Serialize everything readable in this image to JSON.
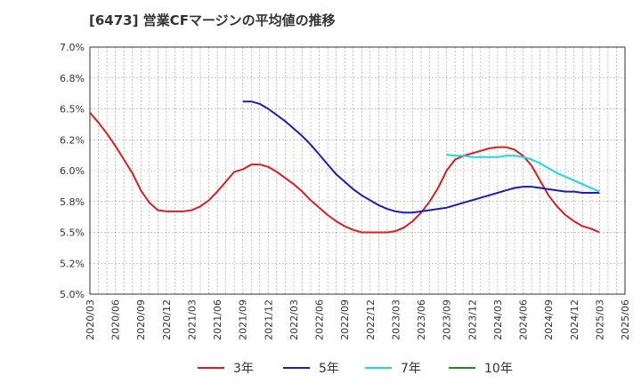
{
  "title": "[6473]  営業CFマージンの平均値の推移",
  "chart_data": {
    "type": "line",
    "title": "[6473]  営業CFマージンの平均値の推移",
    "xlabel": "",
    "ylabel": "",
    "ylim": [
      5.0,
      7.0
    ],
    "y_ticks": [
      "7.0%",
      "6.8%",
      "6.5%",
      "6.2%",
      "6.0%",
      "5.8%",
      "5.5%",
      "5.2%",
      "5.0%"
    ],
    "x_ticks": [
      "2020/03",
      "2020/06",
      "2020/09",
      "2020/12",
      "2021/03",
      "2021/06",
      "2021/09",
      "2021/12",
      "2022/03",
      "2022/06",
      "2022/09",
      "2022/12",
      "2023/03",
      "2023/06",
      "2023/09",
      "2023/12",
      "2024/03",
      "2024/06",
      "2024/09",
      "2024/12",
      "2025/03",
      "2025/06"
    ],
    "grid": true,
    "legend_position": "bottom",
    "series": [
      {
        "name": "3年",
        "color": "#dd1c1c",
        "points": [
          [
            "2020/03",
            6.47
          ],
          [
            "2020/04",
            6.39
          ],
          [
            "2020/05",
            6.3
          ],
          [
            "2020/06",
            6.2
          ],
          [
            "2020/07",
            6.09
          ],
          [
            "2020/08",
            5.98
          ],
          [
            "2020/09",
            5.84
          ],
          [
            "2020/10",
            5.74
          ],
          [
            "2020/11",
            5.68
          ],
          [
            "2020/12",
            5.67
          ],
          [
            "2021/01",
            5.67
          ],
          [
            "2021/02",
            5.67
          ],
          [
            "2021/03",
            5.68
          ],
          [
            "2021/04",
            5.71
          ],
          [
            "2021/05",
            5.76
          ],
          [
            "2021/06",
            5.83
          ],
          [
            "2021/07",
            5.91
          ],
          [
            "2021/08",
            5.99
          ],
          [
            "2021/09",
            6.01
          ],
          [
            "2021/10",
            6.05
          ],
          [
            "2021/11",
            6.05
          ],
          [
            "2021/12",
            6.03
          ],
          [
            "2022/01",
            5.99
          ],
          [
            "2022/02",
            5.94
          ],
          [
            "2022/03",
            5.89
          ],
          [
            "2022/04",
            5.83
          ],
          [
            "2022/05",
            5.76
          ],
          [
            "2022/06",
            5.7
          ],
          [
            "2022/07",
            5.64
          ],
          [
            "2022/08",
            5.59
          ],
          [
            "2022/09",
            5.55
          ],
          [
            "2022/10",
            5.52
          ],
          [
            "2022/11",
            5.5
          ],
          [
            "2022/12",
            5.5
          ],
          [
            "2023/01",
            5.5
          ],
          [
            "2023/02",
            5.5
          ],
          [
            "2023/03",
            5.51
          ],
          [
            "2023/04",
            5.54
          ],
          [
            "2023/05",
            5.59
          ],
          [
            "2023/06",
            5.66
          ],
          [
            "2023/07",
            5.75
          ],
          [
            "2023/08",
            5.86
          ],
          [
            "2023/09",
            6.0
          ],
          [
            "2023/10",
            6.09
          ],
          [
            "2023/11",
            6.12
          ],
          [
            "2023/12",
            6.14
          ],
          [
            "2024/01",
            6.16
          ],
          [
            "2024/02",
            6.18
          ],
          [
            "2024/03",
            6.19
          ],
          [
            "2024/04",
            6.19
          ],
          [
            "2024/05",
            6.17
          ],
          [
            "2024/06",
            6.12
          ],
          [
            "2024/07",
            6.04
          ],
          [
            "2024/08",
            5.92
          ],
          [
            "2024/09",
            5.8
          ],
          [
            "2024/10",
            5.71
          ],
          [
            "2024/11",
            5.64
          ],
          [
            "2024/12",
            5.59
          ],
          [
            "2025/01",
            5.55
          ],
          [
            "2025/02",
            5.53
          ],
          [
            "2025/03",
            5.5
          ]
        ]
      },
      {
        "name": "5年",
        "color": "#1c1cbb",
        "points": [
          [
            "2021/09",
            6.56
          ],
          [
            "2021/10",
            6.56
          ],
          [
            "2021/11",
            6.54
          ],
          [
            "2021/12",
            6.5
          ],
          [
            "2022/01",
            6.45
          ],
          [
            "2022/02",
            6.4
          ],
          [
            "2022/03",
            6.34
          ],
          [
            "2022/04",
            6.28
          ],
          [
            "2022/05",
            6.21
          ],
          [
            "2022/06",
            6.13
          ],
          [
            "2022/07",
            6.05
          ],
          [
            "2022/08",
            5.97
          ],
          [
            "2022/09",
            5.91
          ],
          [
            "2022/10",
            5.85
          ],
          [
            "2022/11",
            5.8
          ],
          [
            "2022/12",
            5.76
          ],
          [
            "2023/01",
            5.72
          ],
          [
            "2023/02",
            5.69
          ],
          [
            "2023/03",
            5.67
          ],
          [
            "2023/04",
            5.66
          ],
          [
            "2023/05",
            5.66
          ],
          [
            "2023/06",
            5.67
          ],
          [
            "2023/07",
            5.68
          ],
          [
            "2023/08",
            5.69
          ],
          [
            "2023/09",
            5.7
          ],
          [
            "2023/10",
            5.72
          ],
          [
            "2023/11",
            5.74
          ],
          [
            "2023/12",
            5.76
          ],
          [
            "2024/01",
            5.78
          ],
          [
            "2024/02",
            5.8
          ],
          [
            "2024/03",
            5.82
          ],
          [
            "2024/04",
            5.84
          ],
          [
            "2024/05",
            5.86
          ],
          [
            "2024/06",
            5.87
          ],
          [
            "2024/07",
            5.87
          ],
          [
            "2024/08",
            5.86
          ],
          [
            "2024/09",
            5.85
          ],
          [
            "2024/10",
            5.84
          ],
          [
            "2024/11",
            5.83
          ],
          [
            "2024/12",
            5.83
          ],
          [
            "2025/01",
            5.82
          ],
          [
            "2025/02",
            5.82
          ],
          [
            "2025/03",
            5.82
          ]
        ]
      },
      {
        "name": "7年",
        "color": "#1cd7e8",
        "points": [
          [
            "2023/09",
            6.13
          ],
          [
            "2023/10",
            6.12
          ],
          [
            "2023/11",
            6.12
          ],
          [
            "2023/12",
            6.11
          ],
          [
            "2024/01",
            6.11
          ],
          [
            "2024/02",
            6.11
          ],
          [
            "2024/03",
            6.11
          ],
          [
            "2024/04",
            6.12
          ],
          [
            "2024/05",
            6.12
          ],
          [
            "2024/06",
            6.11
          ],
          [
            "2024/07",
            6.09
          ],
          [
            "2024/08",
            6.06
          ],
          [
            "2024/09",
            6.02
          ],
          [
            "2024/10",
            5.98
          ],
          [
            "2024/11",
            5.95
          ],
          [
            "2024/12",
            5.92
          ],
          [
            "2025/01",
            5.89
          ],
          [
            "2025/02",
            5.86
          ],
          [
            "2025/03",
            5.83
          ]
        ]
      },
      {
        "name": "10年",
        "color": "#1c8c1c",
        "points": []
      }
    ]
  }
}
